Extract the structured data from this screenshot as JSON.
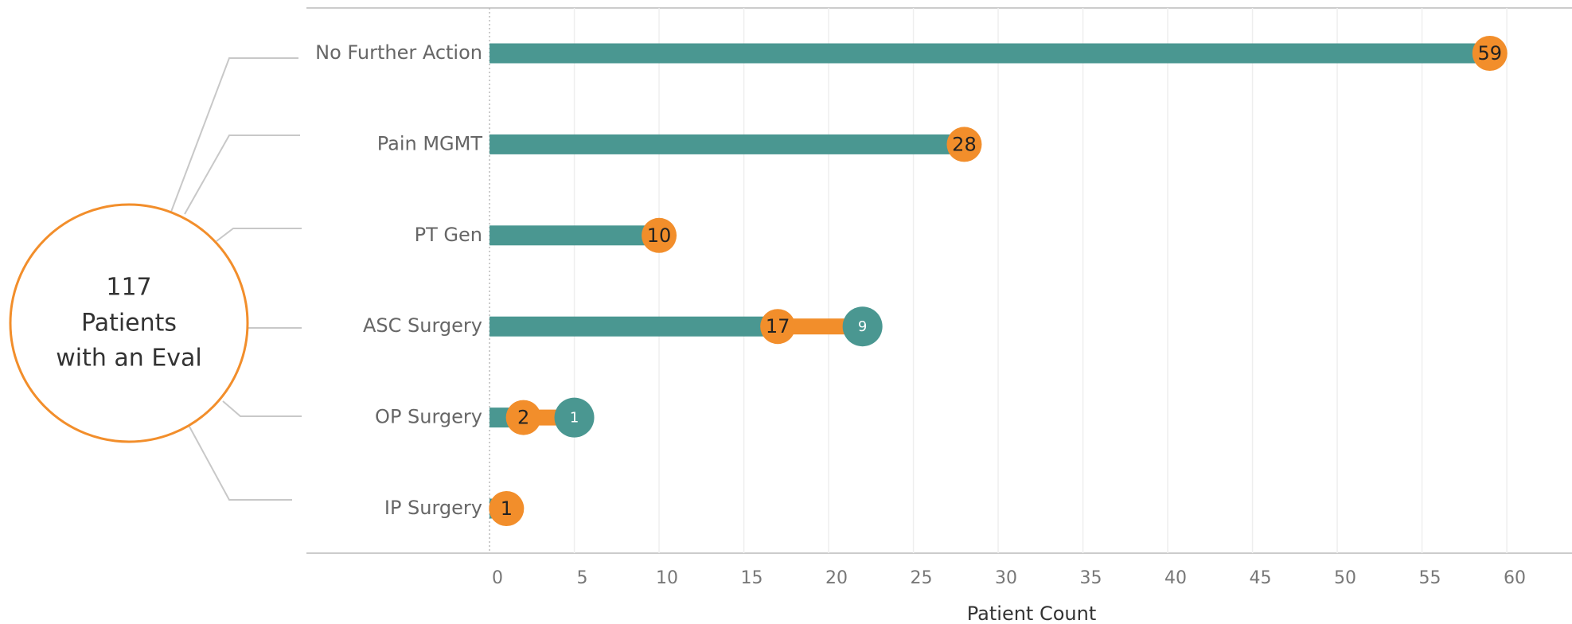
{
  "chart_data": {
    "type": "bar",
    "center_label": {
      "count": 117,
      "lines": [
        "Patients",
        "with an Eval"
      ]
    },
    "categories": [
      "No Further Action",
      "Pain MGMT",
      "PT Gen",
      "ASC Surgery",
      "OP Surgery",
      "IP Surgery"
    ],
    "values": [
      59,
      28,
      10,
      17,
      2,
      1
    ],
    "color": "#4a9791",
    "circle_color": "#f28e2b",
    "followup": {
      "positions": [
        null,
        null,
        null,
        22,
        5,
        null
      ],
      "counts": [
        null,
        null,
        null,
        9,
        1,
        null
      ],
      "color": "#4a9791",
      "link_color": "#f28e2b"
    },
    "xlim": [
      -10.8,
      63.8
    ],
    "xticks": [
      0,
      5,
      10,
      15,
      20,
      25,
      30,
      35,
      40,
      45,
      50,
      55,
      60
    ],
    "xlabel": "Patient Count",
    "grid": true
  }
}
